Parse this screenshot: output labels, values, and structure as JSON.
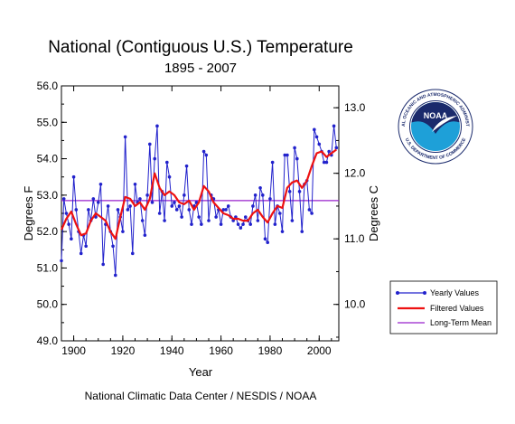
{
  "chart_data": {
    "type": "line",
    "title": "National (Contiguous U.S.) Temperature",
    "subtitle": "1895 - 2007",
    "xlabel": "Year",
    "ylabel": "Degrees F",
    "ylabel_right": "Degrees C",
    "credit": "National Climatic Data Center / NESDIS / NOAA",
    "xlim": [
      1895,
      2008
    ],
    "ylim": [
      49.0,
      56.0
    ],
    "x_ticks": [
      "1900",
      "1920",
      "1940",
      "1960",
      "1980",
      "2000"
    ],
    "y_ticks": [
      "49.0",
      "50.0",
      "51.0",
      "52.0",
      "53.0",
      "54.0",
      "55.0",
      "56.0"
    ],
    "y_ticks_right": [
      "10.0",
      "11.0",
      "12.0",
      "13.0"
    ],
    "grid": false,
    "legend_position": "bottom-right",
    "long_term_mean": 52.85,
    "series": [
      {
        "name": "Yearly Values",
        "color": "#2222cc",
        "x": [
          1895,
          1896,
          1897,
          1898,
          1899,
          1900,
          1901,
          1902,
          1903,
          1904,
          1905,
          1906,
          1907,
          1908,
          1909,
          1910,
          1911,
          1912,
          1913,
          1914,
          1915,
          1916,
          1917,
          1918,
          1919,
          1920,
          1921,
          1922,
          1923,
          1924,
          1925,
          1926,
          1927,
          1928,
          1929,
          1930,
          1931,
          1932,
          1933,
          1934,
          1935,
          1936,
          1937,
          1938,
          1939,
          1940,
          1941,
          1942,
          1943,
          1944,
          1945,
          1946,
          1947,
          1948,
          1949,
          1950,
          1951,
          1952,
          1953,
          1954,
          1955,
          1956,
          1957,
          1958,
          1959,
          1960,
          1961,
          1962,
          1963,
          1964,
          1965,
          1966,
          1967,
          1968,
          1969,
          1970,
          1971,
          1972,
          1973,
          1974,
          1975,
          1976,
          1977,
          1978,
          1979,
          1980,
          1981,
          1982,
          1983,
          1984,
          1985,
          1986,
          1987,
          1988,
          1989,
          1990,
          1991,
          1992,
          1993,
          1994,
          1995,
          1996,
          1997,
          1998,
          1999,
          2000,
          2001,
          2002,
          2003,
          2004,
          2005,
          2006,
          2007
        ],
        "values": [
          51.2,
          52.9,
          52.5,
          52.2,
          51.8,
          53.5,
          52.6,
          52.0,
          51.4,
          51.9,
          51.6,
          52.6,
          52.3,
          52.9,
          52.4,
          52.8,
          53.3,
          51.1,
          52.2,
          52.7,
          52.0,
          51.6,
          50.8,
          52.6,
          52.4,
          52.0,
          54.6,
          52.6,
          52.7,
          51.4,
          53.3,
          52.8,
          52.9,
          52.3,
          51.9,
          53.0,
          54.4,
          52.8,
          54.0,
          54.9,
          52.5,
          53.1,
          52.3,
          53.9,
          53.5,
          52.7,
          52.8,
          52.6,
          52.7,
          52.4,
          53.0,
          53.8,
          52.6,
          52.2,
          52.7,
          52.8,
          52.4,
          52.2,
          54.2,
          54.1,
          52.3,
          53.0,
          52.9,
          52.4,
          52.6,
          52.2,
          52.6,
          52.6,
          52.7,
          52.4,
          52.3,
          52.4,
          52.2,
          52.1,
          52.2,
          52.4,
          52.3,
          52.2,
          52.7,
          53.0,
          52.3,
          53.2,
          53.0,
          51.8,
          51.7,
          52.9,
          53.9,
          52.2,
          52.7,
          52.5,
          52.0,
          54.1,
          54.1,
          53.1,
          52.3,
          54.3,
          54.0,
          53.1,
          52.0,
          53.3,
          53.4,
          52.6,
          52.5,
          54.8,
          54.6,
          54.4,
          54.2,
          53.9,
          53.9,
          54.2,
          54.1,
          54.9,
          54.3
        ]
      },
      {
        "name": "Filtered Values",
        "color": "#ee1111",
        "x": [
          1895,
          1897,
          1899,
          1901,
          1903,
          1905,
          1907,
          1909,
          1911,
          1913,
          1915,
          1917,
          1919,
          1921,
          1923,
          1925,
          1927,
          1929,
          1931,
          1933,
          1935,
          1937,
          1939,
          1941,
          1943,
          1945,
          1947,
          1949,
          1951,
          1953,
          1955,
          1957,
          1959,
          1961,
          1963,
          1965,
          1967,
          1969,
          1971,
          1973,
          1975,
          1977,
          1979,
          1981,
          1983,
          1985,
          1987,
          1989,
          1991,
          1993,
          1995,
          1997,
          1999,
          2001,
          2003,
          2005,
          2007
        ],
        "values": [
          52.05,
          52.35,
          52.55,
          52.2,
          51.9,
          51.95,
          52.3,
          52.5,
          52.4,
          52.3,
          52.0,
          51.8,
          52.4,
          52.95,
          52.9,
          52.7,
          52.8,
          52.6,
          52.9,
          53.6,
          53.2,
          53.0,
          53.1,
          53.0,
          52.8,
          52.75,
          52.85,
          52.6,
          52.8,
          53.25,
          53.1,
          52.8,
          52.65,
          52.5,
          52.45,
          52.35,
          52.35,
          52.3,
          52.3,
          52.5,
          52.6,
          52.4,
          52.25,
          52.5,
          52.7,
          52.65,
          53.2,
          53.35,
          53.4,
          53.2,
          53.4,
          53.8,
          54.15,
          54.2,
          54.05,
          54.15,
          54.25
        ]
      },
      {
        "name": "Long-Term Mean",
        "color": "#9922cc"
      }
    ]
  },
  "logo": {
    "name": "noaa-logo",
    "center_text": "NOAA",
    "ring_top_text": "NATIONAL OCEANIC AND ATMOSPHERIC ADMINISTRATION",
    "ring_bottom_text": "U.S. DEPARTMENT OF COMMERCE",
    "colors": {
      "dark_blue": "#1a2a6c",
      "light_blue": "#1ea0d8",
      "white": "#ffffff"
    }
  }
}
